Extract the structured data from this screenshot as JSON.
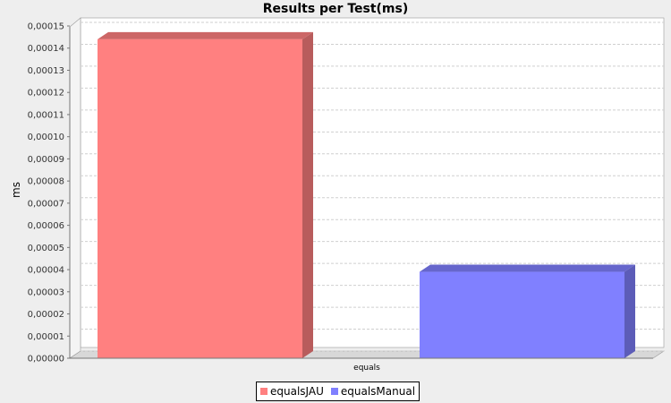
{
  "chart_data": {
    "type": "bar",
    "title": "Results per Test(ms)",
    "xlabel": "",
    "ylabel": "ms",
    "categories": [
      "equals"
    ],
    "ylim": [
      0,
      0.00015
    ],
    "yticks": [
      "0,00000",
      "0,00001",
      "0,00002",
      "0,00003",
      "0,00004",
      "0,00005",
      "0,00006",
      "0,00007",
      "0,00008",
      "0,00009",
      "0,00010",
      "0,00011",
      "0,00012",
      "0,00013",
      "0,00014",
      "0,00015"
    ],
    "grid": true,
    "legend_position": "bottom",
    "series": [
      {
        "name": "equalsJAU",
        "values": [
          0.000144
        ],
        "color": "#ff8080"
      },
      {
        "name": "equalsManual",
        "values": [
          3.9e-05
        ],
        "color": "#8080ff"
      }
    ]
  }
}
